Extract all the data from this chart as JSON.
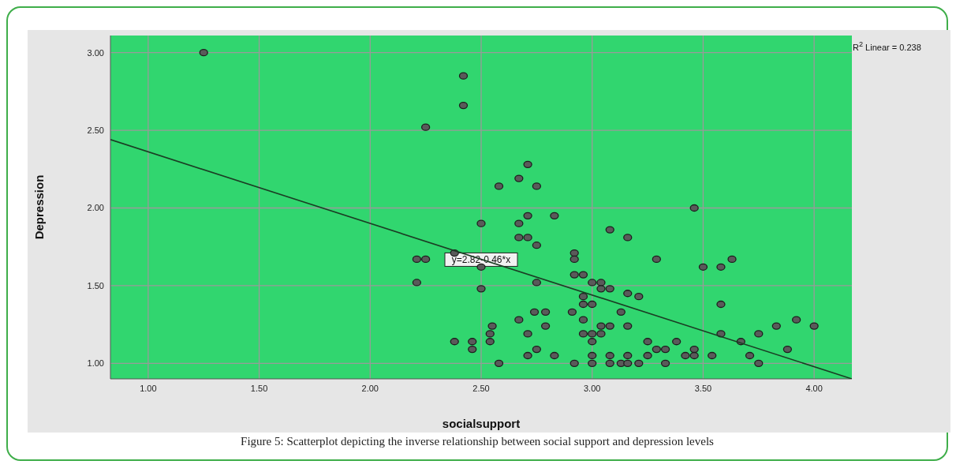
{
  "chart_data": {
    "type": "scatter",
    "xlabel": "socialsupport",
    "ylabel": "Depression",
    "xlim": [
      0.83,
      4.17
    ],
    "ylim": [
      0.9,
      3.11
    ],
    "xticks": [
      {
        "value": 1,
        "label": "1.00"
      },
      {
        "value": 1.5,
        "label": "1.50"
      },
      {
        "value": 2,
        "label": "2.00"
      },
      {
        "value": 2.5,
        "label": "2.50"
      },
      {
        "value": 3,
        "label": "3.00"
      },
      {
        "value": 3.5,
        "label": "3.50"
      },
      {
        "value": 4,
        "label": "4.00"
      }
    ],
    "yticks": [
      {
        "value": 1,
        "label": "1.00"
      },
      {
        "value": 1.5,
        "label": "1.50"
      },
      {
        "value": 2,
        "label": "2.00"
      },
      {
        "value": 2.5,
        "label": "2.50"
      },
      {
        "value": 3,
        "label": "3.00"
      }
    ],
    "grid": true,
    "series": [
      {
        "marker": "circle",
        "color": "#5a5a5a",
        "x": [
          1.25,
          2.42,
          2.42,
          2.25,
          2.5,
          2.71,
          2.67,
          2.58,
          2.75,
          2.71,
          2.83,
          2.67,
          3.08,
          2.67,
          2.71,
          3.16,
          2.75,
          2.38,
          2.92,
          2.21,
          2.25,
          2.92,
          2.5,
          2.21,
          2.75,
          2.92,
          2.96,
          3.0,
          3.04,
          3.04,
          3.08,
          3.16,
          2.5,
          2.96,
          2.96,
          3.0,
          3.13,
          2.74,
          2.79,
          2.91,
          2.67,
          2.96,
          2.55,
          2.79,
          3.04,
          3.08,
          3.16,
          2.54,
          2.71,
          2.96,
          3.0,
          3.04,
          2.38,
          2.46,
          2.54,
          3.0,
          2.46,
          2.75,
          2.71,
          2.83,
          3.0,
          3.08,
          3.16,
          2.58,
          2.92,
          3.0,
          3.08,
          3.13,
          3.16,
          3.46,
          3.29,
          3.5,
          3.58,
          3.63,
          3.21,
          3.58,
          3.58,
          3.75,
          3.83,
          3.92,
          4.0,
          3.25,
          3.38,
          3.67,
          3.29,
          3.33,
          3.46,
          3.88,
          3.25,
          3.42,
          3.46,
          3.54,
          3.71,
          3.21,
          3.33,
          3.75
        ],
        "values": [
          3.0,
          2.85,
          2.66,
          2.52,
          1.9,
          2.28,
          2.19,
          2.14,
          2.14,
          1.95,
          1.95,
          1.9,
          1.86,
          1.81,
          1.81,
          1.81,
          1.76,
          1.71,
          1.71,
          1.67,
          1.67,
          1.67,
          1.62,
          1.52,
          1.52,
          1.57,
          1.57,
          1.52,
          1.52,
          1.48,
          1.48,
          1.45,
          1.48,
          1.43,
          1.38,
          1.38,
          1.33,
          1.33,
          1.33,
          1.33,
          1.28,
          1.28,
          1.24,
          1.24,
          1.24,
          1.24,
          1.24,
          1.19,
          1.19,
          1.19,
          1.19,
          1.19,
          1.14,
          1.14,
          1.14,
          1.14,
          1.09,
          1.09,
          1.05,
          1.05,
          1.05,
          1.05,
          1.05,
          1.0,
          1.0,
          1.0,
          1.0,
          1.0,
          1.0,
          2.0,
          1.67,
          1.62,
          1.62,
          1.67,
          1.43,
          1.38,
          1.19,
          1.19,
          1.24,
          1.28,
          1.24,
          1.14,
          1.14,
          1.14,
          1.09,
          1.09,
          1.09,
          1.09,
          1.05,
          1.05,
          1.05,
          1.05,
          1.05,
          1.0,
          1.0,
          1.0
        ]
      },
      {
        "type": "line",
        "color": "#1b3d24",
        "x": [
          0.83,
          4.17
        ],
        "values": [
          2.44,
          0.9
        ]
      }
    ],
    "annotations": [
      {
        "text": "y=2.82-0.46*x",
        "x": 2.5,
        "y": 1.67
      },
      "R$^{2}$ Linear = 0.238",
      "Figure 5: Scatterplot depicting the inverse relationship between social support and depression levels"
    ]
  }
}
